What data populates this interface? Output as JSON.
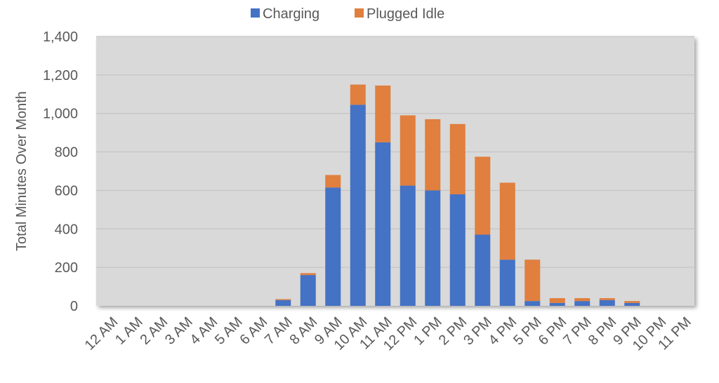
{
  "chart_data": {
    "type": "bar",
    "stacked": true,
    "categories": [
      "12 AM",
      "1 AM",
      "2 AM",
      "3 AM",
      "4 AM",
      "5 AM",
      "6 AM",
      "7 AM",
      "8 AM",
      "9 AM",
      "10 AM",
      "11 AM",
      "12 PM",
      "1 PM",
      "2 PM",
      "3 PM",
      "4 PM",
      "5 PM",
      "6 PM",
      "7 PM",
      "8 PM",
      "9 PM",
      "10 PM",
      "11 PM"
    ],
    "series": [
      {
        "name": "Charging",
        "color": "#4472C4",
        "values": [
          0,
          0,
          0,
          0,
          0,
          0,
          0,
          30,
          160,
          615,
          1045,
          850,
          625,
          600,
          580,
          370,
          240,
          25,
          15,
          25,
          30,
          15,
          0,
          0
        ]
      },
      {
        "name": "Plugged Idle",
        "color": "#E07F3E",
        "values": [
          0,
          0,
          0,
          0,
          0,
          0,
          0,
          5,
          10,
          65,
          105,
          295,
          365,
          370,
          365,
          405,
          400,
          215,
          25,
          15,
          10,
          10,
          0,
          0
        ]
      }
    ],
    "title": "",
    "xlabel": "",
    "ylabel": "Total Minutes Over Month",
    "ylim": [
      0,
      1400
    ],
    "yticks": [
      0,
      200,
      400,
      600,
      800,
      1000,
      1200,
      1400
    ],
    "ytick_labels": [
      "0",
      "200",
      "400",
      "600",
      "800",
      "1,000",
      "1,200",
      "1,400"
    ],
    "grid": true,
    "legend_position": "top-center",
    "plot_background": "#D9D9D9",
    "gridline_color": "#BFBFBF"
  }
}
